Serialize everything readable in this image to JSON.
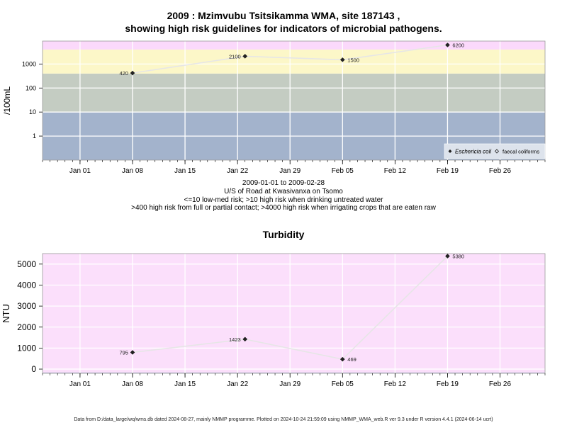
{
  "chart_data": [
    {
      "type": "line",
      "title_line1": "2009 : Mzimvubu Tsitsikamma WMA, site 187143 ,",
      "title_line2": "showing high risk guidelines for indicators of microbial pathogens.",
      "ylabel": "/100mL",
      "yscale": "log",
      "ylim": [
        0.1,
        9000
      ],
      "yticks": [
        1,
        10,
        100,
        1000
      ],
      "ytick_labels": [
        "1",
        "10",
        "100",
        "1000"
      ],
      "xlim": [
        "2008-12-27",
        "2009-03-04"
      ],
      "xticks": [
        "2009-01-01",
        "2009-01-08",
        "2009-01-15",
        "2009-01-22",
        "2009-01-29",
        "2009-02-05",
        "2009-02-12",
        "2009-02-19",
        "2009-02-26"
      ],
      "xtick_labels": [
        "Jan 01",
        "Jan 08",
        "Jan 15",
        "Jan 22",
        "Jan 29",
        "Feb 05",
        "Feb 12",
        "Feb 19",
        "Feb 26"
      ],
      "risk_bands": [
        {
          "from": 0.1,
          "to": 10,
          "color": "#a3b3cc"
        },
        {
          "from": 10,
          "to": 400,
          "color": "#c4ccc2"
        },
        {
          "from": 400,
          "to": 4000,
          "color": "#fcf7c8"
        },
        {
          "from": 4000,
          "to": 9000,
          "color": "#fbd9fb"
        }
      ],
      "series": [
        {
          "name": "Eschericia coli",
          "marker": "filled-diamond",
          "x": [
            "2009-01-08",
            "2009-01-23",
            "2009-02-05",
            "2009-02-19"
          ],
          "values": [
            420,
            2100,
            1500,
            6200
          ],
          "labels": [
            "420",
            "2100",
            "1500",
            "6200"
          ]
        }
      ],
      "legend": {
        "position": "bottom-right",
        "entries": [
          {
            "label": "Eschericia coli",
            "marker": "filled-diamond"
          },
          {
            "label": "faecal coliforms",
            "marker": "open-diamond"
          }
        ]
      },
      "caption": [
        "2009-01-01 to 2009-02-28",
        "U/S of Road at Kwasivanxa on Tsomo",
        "<=10 low-med risk; >10 high risk when drinking untreated water",
        ">400 high risk from full or partial contact; >4000 high risk when irrigating crops that are eaten raw"
      ],
      "grid": true
    },
    {
      "type": "line",
      "title": "Turbidity",
      "ylabel": "NTU",
      "ylim": [
        -200,
        5500
      ],
      "yticks": [
        0,
        1000,
        2000,
        3000,
        4000,
        5000
      ],
      "ytick_labels": [
        "0",
        "1000",
        "2000",
        "3000",
        "4000",
        "5000"
      ],
      "xlim": [
        "2008-12-27",
        "2009-03-04"
      ],
      "xticks": [
        "2009-01-01",
        "2009-01-08",
        "2009-01-15",
        "2009-01-22",
        "2009-01-29",
        "2009-02-05",
        "2009-02-12",
        "2009-02-19",
        "2009-02-26"
      ],
      "xtick_labels": [
        "Jan 01",
        "Jan 08",
        "Jan 15",
        "Jan 22",
        "Jan 29",
        "Feb 05",
        "Feb 12",
        "Feb 19",
        "Feb 26"
      ],
      "background": "#fbdffb",
      "base_band_color": "#a3b3cc",
      "series": [
        {
          "name": "Turbidity",
          "marker": "filled-diamond",
          "x": [
            "2009-01-08",
            "2009-01-23",
            "2009-02-05",
            "2009-02-19"
          ],
          "values": [
            795,
            1423,
            469,
            5380
          ],
          "labels": [
            "795",
            "1423",
            "469",
            "5380"
          ]
        }
      ],
      "grid": true
    }
  ],
  "footer": "Data from D:/data_large/wq/wms.db dated 2024-08-27, mainly NMMP programme. Plotted on 2024-10-24 21:59:09 using NMMP_WMA_web.R ver 9.3 under R version 4.4.1 (2024-06-14 ucrt)"
}
